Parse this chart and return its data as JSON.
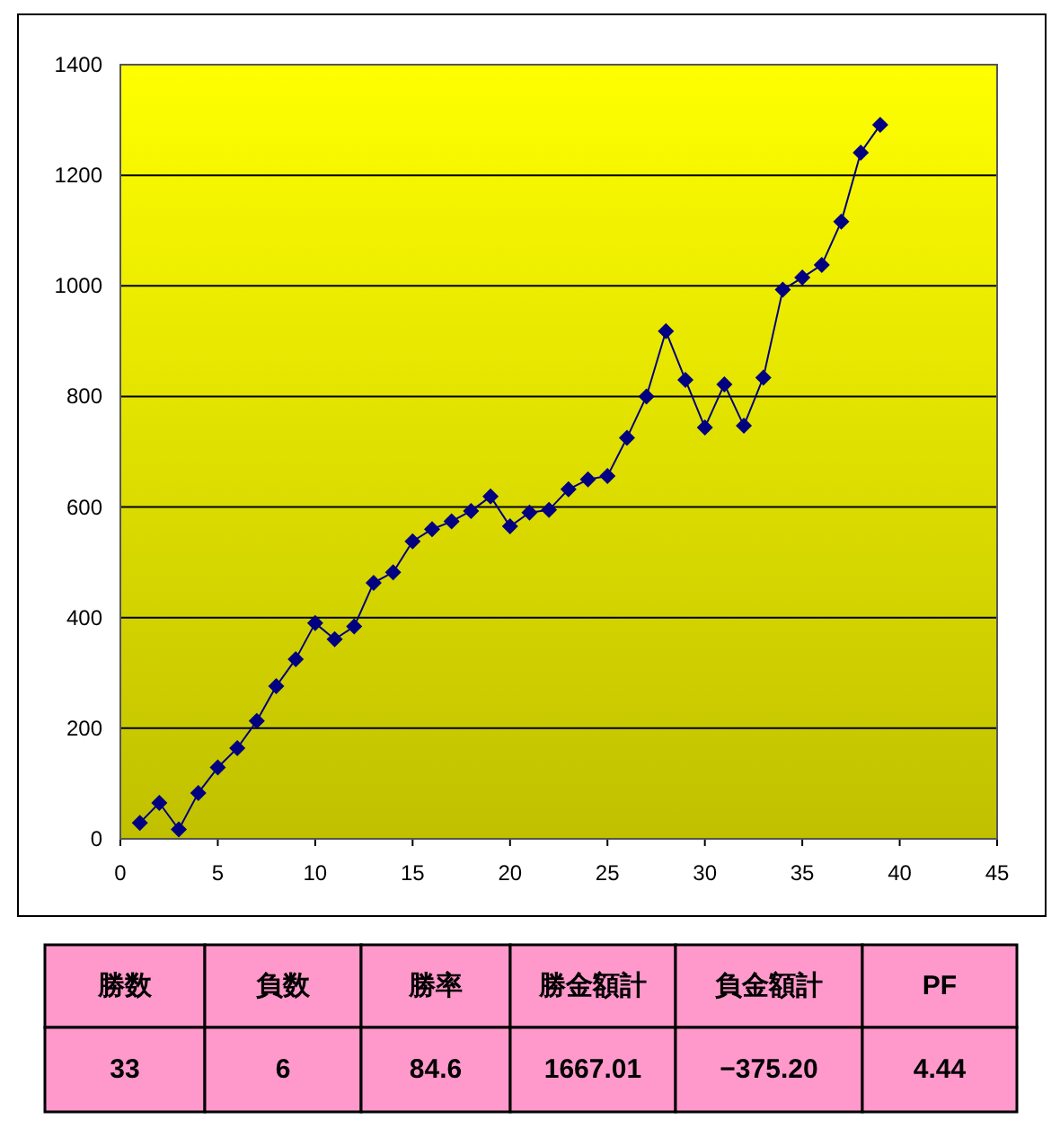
{
  "chart_data": {
    "type": "line",
    "x": [
      1,
      2,
      3,
      4,
      5,
      6,
      7,
      8,
      9,
      10,
      11,
      12,
      13,
      14,
      15,
      16,
      17,
      18,
      19,
      20,
      21,
      22,
      23,
      24,
      25,
      26,
      27,
      28,
      29,
      30,
      31,
      32,
      33,
      34,
      35,
      36,
      37,
      38,
      39
    ],
    "series": [
      {
        "color": "#000080",
        "values": [
          29,
          65,
          17,
          83,
          129,
          164,
          213,
          276,
          325,
          390,
          361,
          384,
          463,
          482,
          538,
          560,
          574,
          593,
          619,
          565,
          590,
          595,
          632,
          650,
          656,
          725,
          800,
          918,
          830,
          744,
          822,
          747,
          834,
          993,
          1015,
          1038,
          1116,
          1241,
          1291
        ]
      }
    ],
    "xlim": [
      0,
      45
    ],
    "xticks": [
      0,
      5,
      10,
      15,
      20,
      25,
      30,
      35,
      40,
      45
    ],
    "ylim": [
      0,
      1400
    ],
    "yticks": [
      0,
      200,
      400,
      600,
      800,
      1000,
      1200,
      1400
    ],
    "grid": "y",
    "marker": "diamond",
    "line_style": "solid",
    "annotations": [
      "勝数",
      "負数",
      "勝率",
      "勝金額計",
      "負金額計",
      "PF",
      "33",
      "6",
      "84.6",
      "1667.01",
      "−375.20",
      "4.44"
    ]
  }
}
